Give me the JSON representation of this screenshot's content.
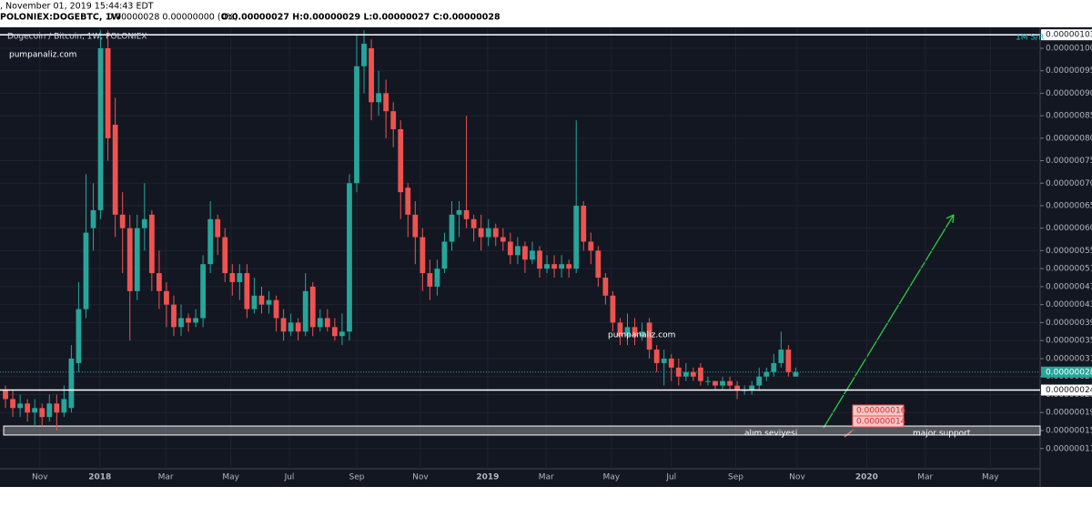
{
  "header": {
    "timestamp": ", November 01, 2019 15:44:43 EDT",
    "symbol": "POLONIEX:DOGEBTC, 1W",
    "change": "0.00000028 0.00000000 (0%)",
    "ohlc": "O:0.00000027 H:0.00000029 L:0.00000027 C:0.00000028"
  },
  "chart_data": {
    "type": "candlestick",
    "title": "Dogecoin / Bitcoin, 1W, POLONIEX",
    "watermarks": [
      "pumpanaliz.com",
      "pumpanaliz.com"
    ],
    "indicator": "1M S/R",
    "up_color": "#26a69a",
    "down_color": "#ef5350",
    "open": [
      2.4e-07,
      2.2e-07,
      2e-07,
      2.1e-07,
      1.9e-07,
      2e-07,
      1.8e-07,
      2.1e-07,
      1.9e-07,
      2e-07,
      3e-07,
      4.2e-07,
      6e-07,
      6.4e-07,
      1e-06,
      8.3e-07,
      6.3e-07,
      6e-07,
      4.6e-07,
      6e-07,
      6.3e-07,
      5e-07,
      4.6e-07,
      4.3e-07,
      3.8e-07,
      4e-07,
      3.9e-07,
      4e-07,
      5.2e-07,
      6.2e-07,
      5.8e-07,
      5e-07,
      4.8e-07,
      5e-07,
      4.2e-07,
      4.5e-07,
      4.3e-07,
      4.4e-07,
      4e-07,
      3.7e-07,
      3.9e-07,
      3.7e-07,
      4.7e-07,
      3.8e-07,
      4e-07,
      3.8e-07,
      3.6e-07,
      3.7e-07,
      7e-07,
      9.6e-07,
      1e-06,
      8.8e-07,
      9e-07,
      8.6e-07,
      8.2e-07,
      6.9e-07,
      6.3e-07,
      5.8e-07,
      5e-07,
      4.7e-07,
      5.1e-07,
      5.7e-07,
      6.3e-07,
      6.4e-07,
      6.2e-07,
      6e-07,
      5.8e-07,
      6e-07,
      5.8e-07,
      5.7e-07,
      5.4e-07,
      5.6e-07,
      5.3e-07,
      5.5e-07,
      5.1e-07,
      5.2e-07,
      5.1e-07,
      5.2e-07,
      5.1e-07,
      6.5e-07,
      5.7e-07,
      5.5e-07,
      4.9e-07,
      4.5e-07,
      3.9e-07,
      3.6e-07,
      3.8e-07,
      3.6e-07,
      3.9e-07,
      3.3e-07,
      3e-07,
      3.1e-07,
      2.9e-07,
      2.7e-07,
      2.8e-07,
      2.9e-07,
      2.6e-07,
      2.6e-07,
      2.5e-07,
      2.6e-07,
      2.5e-07,
      2.4e-07,
      2.4e-07,
      2.5e-07,
      2.7e-07,
      2.8e-07,
      3e-07,
      3.3e-07,
      2.7e-07
    ],
    "high": [
      2.5e-07,
      2.4e-07,
      2.3e-07,
      2.2e-07,
      2.2e-07,
      2.1e-07,
      2.3e-07,
      2.3e-07,
      2.5e-07,
      3.4e-07,
      4.8e-07,
      7.2e-07,
      7e-07,
      1.04e-06,
      1.04e-06,
      8.9e-07,
      6.8e-07,
      6.3e-07,
      6.3e-07,
      7e-07,
      6.4e-07,
      5.5e-07,
      4.8e-07,
      4.5e-07,
      4.3e-07,
      4.1e-07,
      4.2e-07,
      5.4e-07,
      6.6e-07,
      6.3e-07,
      6e-07,
      5.2e-07,
      5.2e-07,
      5.2e-07,
      4.9e-07,
      4.7e-07,
      4.6e-07,
      4.5e-07,
      4.2e-07,
      4.1e-07,
      4e-07,
      5e-07,
      4.8e-07,
      4.2e-07,
      4.2e-07,
      4e-07,
      4.1e-07,
      7.2e-07,
      1.03e-06,
      1.04e-06,
      1.02e-06,
      9.5e-07,
      9.3e-07,
      8.8e-07,
      8.4e-07,
      7e-07,
      6.6e-07,
      6e-07,
      5.3e-07,
      5.3e-07,
      5.9e-07,
      6.6e-07,
      6.6e-07,
      8.5e-07,
      6.3e-07,
      6.3e-07,
      6.2e-07,
      6.1e-07,
      6e-07,
      5.9e-07,
      5.8e-07,
      5.7e-07,
      5.7e-07,
      5.6e-07,
      5.4e-07,
      5.4e-07,
      5.4e-07,
      5.3e-07,
      8.4e-07,
      6.6e-07,
      5.9e-07,
      5.6e-07,
      5e-07,
      4.6e-07,
      4e-07,
      4.1e-07,
      4e-07,
      3.9e-07,
      4e-07,
      3.4e-07,
      3.3e-07,
      3.2e-07,
      3.1e-07,
      3e-07,
      2.9e-07,
      3e-07,
      2.7e-07,
      2.6e-07,
      2.7e-07,
      2.7e-07,
      2.6e-07,
      2.5e-07,
      2.6e-07,
      2.9e-07,
      2.9e-07,
      3.2e-07,
      3.7e-07,
      3.4e-07,
      2.9e-07
    ],
    "low": [
      2e-07,
      1.8e-07,
      1.8e-07,
      1.7e-07,
      1.6e-07,
      1.6e-07,
      1.7e-07,
      1.5e-07,
      1.8e-07,
      1.9e-07,
      2.8e-07,
      4e-07,
      5.5e-07,
      6.2e-07,
      7.5e-07,
      5.8e-07,
      5e-07,
      3.5e-07,
      4.4e-07,
      5.5e-07,
      4.6e-07,
      4.2e-07,
      3.8e-07,
      3.6e-07,
      3.6e-07,
      3.7e-07,
      3.8e-07,
      3.8e-07,
      5e-07,
      5.4e-07,
      4.8e-07,
      4.5e-07,
      4.4e-07,
      4e-07,
      4.1e-07,
      4.1e-07,
      4.1e-07,
      3.7e-07,
      3.5e-07,
      3.6e-07,
      3.5e-07,
      3.6e-07,
      3.6e-07,
      3.7e-07,
      3.7e-07,
      3.5e-07,
      3.4e-07,
      3.5e-07,
      6.8e-07,
      9e-07,
      8.4e-07,
      8.5e-07,
      8e-07,
      7.8e-07,
      6.2e-07,
      5.8e-07,
      5.2e-07,
      4.6e-07,
      4.4e-07,
      4.5e-07,
      5e-07,
      5.5e-07,
      5.8e-07,
      6e-07,
      5.7e-07,
      5.5e-07,
      5.6e-07,
      5.6e-07,
      5.5e-07,
      5.2e-07,
      5.2e-07,
      5e-07,
      5.2e-07,
      4.9e-07,
      5e-07,
      4.9e-07,
      4.9e-07,
      4.9e-07,
      5e-07,
      5.5e-07,
      5.2e-07,
      4.7e-07,
      4.3e-07,
      3.7e-07,
      3.4e-07,
      3.4e-07,
      3.4e-07,
      3.5e-07,
      3.1e-07,
      2.8e-07,
      2.5e-07,
      2.6e-07,
      2.5e-07,
      2.6e-07,
      2.6e-07,
      2.5e-07,
      2.5e-07,
      2.4e-07,
      2.4e-07,
      2.4e-07,
      2.2e-07,
      2.3e-07,
      2.3e-07,
      2.4e-07,
      2.6e-07,
      2.7e-07,
      2.9e-07,
      2.7e-07,
      2.7e-07
    ],
    "close": [
      2.2e-07,
      2e-07,
      2.1e-07,
      1.9e-07,
      2e-07,
      1.8e-07,
      2.1e-07,
      1.9e-07,
      2.2e-07,
      3.1e-07,
      4.2e-07,
      5.9e-07,
      6.4e-07,
      1e-06,
      8e-07,
      6.3e-07,
      6e-07,
      4.6e-07,
      6e-07,
      6.2e-07,
      5e-07,
      4.6e-07,
      4.3e-07,
      3.8e-07,
      4e-07,
      3.9e-07,
      4e-07,
      5.2e-07,
      6.2e-07,
      5.8e-07,
      5e-07,
      4.8e-07,
      5e-07,
      4.2e-07,
      4.5e-07,
      4.3e-07,
      4.4e-07,
      4e-07,
      3.7e-07,
      3.9e-07,
      3.7e-07,
      4.6e-07,
      3.8e-07,
      4e-07,
      3.8e-07,
      3.6e-07,
      3.7e-07,
      7e-07,
      9.6e-07,
      1.01e-06,
      8.8e-07,
      9e-07,
      8.6e-07,
      8.2e-07,
      6.8e-07,
      6.3e-07,
      5.8e-07,
      5e-07,
      4.7e-07,
      5.1e-07,
      5.7e-07,
      6.3e-07,
      6.4e-07,
      6.2e-07,
      6e-07,
      5.8e-07,
      6e-07,
      5.8e-07,
      5.7e-07,
      5.4e-07,
      5.6e-07,
      5.3e-07,
      5.5e-07,
      5.1e-07,
      5.2e-07,
      5.1e-07,
      5.2e-07,
      5.1e-07,
      6.5e-07,
      5.7e-07,
      5.5e-07,
      4.9e-07,
      4.5e-07,
      3.9e-07,
      3.6e-07,
      3.8e-07,
      3.6e-07,
      3.7e-07,
      3.3e-07,
      3e-07,
      3.1e-07,
      2.9e-07,
      2.7e-07,
      2.8e-07,
      2.7e-07,
      2.6e-07,
      2.6e-07,
      2.5e-07,
      2.6e-07,
      2.5e-07,
      2.4e-07,
      2.4e-07,
      2.5e-07,
      2.7e-07,
      2.8e-07,
      3e-07,
      3.3e-07,
      2.8e-07,
      2.8e-07
    ],
    "xlim": [
      -0.75,
      141.4
    ],
    "xticks": [
      {
        "value": 4.7,
        "label": "Nov"
      },
      {
        "value": 12.9,
        "label": "2018"
      },
      {
        "value": 21.9,
        "label": "Mar"
      },
      {
        "value": 30.8,
        "label": "May"
      },
      {
        "value": 38.8,
        "label": "Jul"
      },
      {
        "value": 48.0,
        "label": "Sep"
      },
      {
        "value": 56.7,
        "label": "Nov"
      },
      {
        "value": 65.9,
        "label": "2019"
      },
      {
        "value": 73.9,
        "label": "Mar"
      },
      {
        "value": 82.8,
        "label": "May"
      },
      {
        "value": 91.0,
        "label": "Jul"
      },
      {
        "value": 99.8,
        "label": "Sep"
      },
      {
        "value": 108.2,
        "label": "Nov"
      },
      {
        "value": 117.7,
        "label": "2020"
      },
      {
        "value": 125.7,
        "label": "Mar"
      },
      {
        "value": 134.6,
        "label": "May"
      }
    ],
    "ylim": [
      6.5e-08,
      1.0466e-06
    ],
    "yticks": [
      {
        "value": 1e-06,
        "label": "0.00000100"
      },
      {
        "value": 9.5e-07,
        "label": "0.00000095"
      },
      {
        "value": 9e-07,
        "label": "0.00000090"
      },
      {
        "value": 8.5e-07,
        "label": "0.00000085"
      },
      {
        "value": 8e-07,
        "label": "0.00000080"
      },
      {
        "value": 7.5e-07,
        "label": "0.00000075"
      },
      {
        "value": 7e-07,
        "label": "0.00000070"
      },
      {
        "value": 6.5e-07,
        "label": "0.00000065"
      },
      {
        "value": 6e-07,
        "label": "0.00000060"
      },
      {
        "value": 5.5e-07,
        "label": "0.00000055"
      },
      {
        "value": 5.1e-07,
        "label": "0.00000051"
      },
      {
        "value": 4.7e-07,
        "label": "0.00000047"
      },
      {
        "value": 4.3e-07,
        "label": "0.00000043"
      },
      {
        "value": 3.9e-07,
        "label": "0.00000039"
      },
      {
        "value": 3.5e-07,
        "label": "0.00000035"
      },
      {
        "value": 3.1e-07,
        "label": "0.00000031"
      },
      {
        "value": 2.7e-07,
        "label": "0.00000027"
      },
      {
        "value": 2.3e-07,
        "label": "0.00000023"
      },
      {
        "value": 1.9e-07,
        "label": "0.00000019"
      },
      {
        "value": 1.5e-07,
        "label": "0.00000015"
      },
      {
        "value": 1.1e-07,
        "label": "0.00000011"
      }
    ],
    "grid": true,
    "levels": [
      {
        "value": 1.03e-06,
        "label": "0.00000103"
      },
      {
        "value": 2.4e-07,
        "label": "0.00000024"
      }
    ],
    "last_price": {
      "value": 2.8e-07,
      "label": "0.00000028"
    },
    "support_zone": [
      {
        "value": 1.6e-07,
        "label": "0.00000016"
      },
      {
        "value": 1.4e-07,
        "label": "0.00000014"
      }
    ],
    "annotations": [
      "alım seviyesi",
      "major support"
    ]
  }
}
